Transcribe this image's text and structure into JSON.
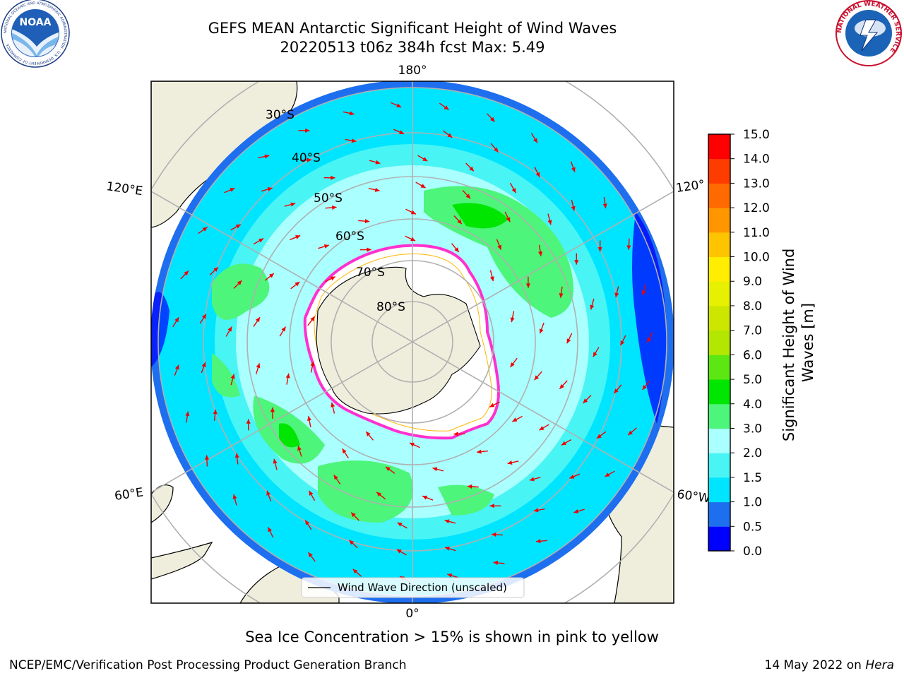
{
  "header": {
    "title_line1": "GEFS MEAN Antarctic Significant Height of Wind Waves",
    "title_line2": "20220513 t06z 384h fcst   Max: 5.49"
  },
  "logos": {
    "left": "noa-logo",
    "left_text": "NOAA",
    "left_ring_text": "NATIONAL OCEANIC AND ATMOSPHERIC ADMINISTRATION · U.S. DEPARTMENT OF COMMERCE",
    "right": "nws-logo",
    "right_ring_text": "NATIONAL WEATHER SERVICE"
  },
  "map": {
    "projection": "south-polar-stereographic",
    "longitude_labels": [
      "180°",
      "120°E",
      "120°",
      "60°E",
      "60°W",
      "0°"
    ],
    "latitude_labels": [
      "30°S",
      "40°S",
      "50°S",
      "60°S",
      "70°S",
      "80°S"
    ],
    "legend_label": "Wind Wave Direction (unscaled)"
  },
  "colorbar": {
    "label": "Significant Height of Wind Waves [m]",
    "ticks": [
      "0.0",
      "0.5",
      "1.0",
      "1.5",
      "2.0",
      "3.0",
      "4.0",
      "5.0",
      "6.0",
      "7.0",
      "8.0",
      "9.0",
      "10.0",
      "11.0",
      "12.0",
      "13.0",
      "14.0",
      "15.0"
    ],
    "colors": [
      "#0000ff",
      "#1e6fef",
      "#00e5ff",
      "#49f4f4",
      "#aaffff",
      "#4df57a",
      "#00e600",
      "#5ce612",
      "#b3e600",
      "#cce600",
      "#e6f000",
      "#ffee00",
      "#ffc400",
      "#ff9600",
      "#ff6a00",
      "#ff3c00",
      "#ff0000"
    ]
  },
  "colors": {
    "land": "#efeedd",
    "ice": "#ffffff",
    "arrow": "#ee0000",
    "grid": "#b0b0b0",
    "ice_edge": "#ff30d0"
  },
  "footer": {
    "sea_ice_note": "Sea Ice Concentration > 15% is shown in pink to yellow",
    "credit": "NCEP/EMC/Verification Post Processing Product Generation Branch",
    "date": "14 May 2022 on ",
    "machine": "Hera"
  }
}
